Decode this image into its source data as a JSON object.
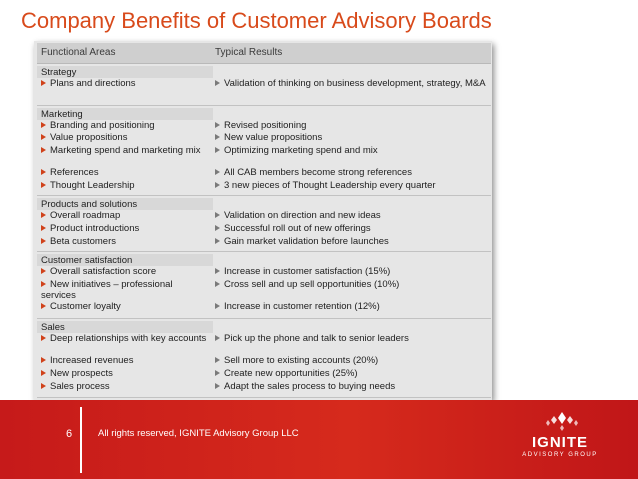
{
  "title": "Company Benefits of Customer Advisory Boards",
  "table": {
    "col1_header": "Functional Areas",
    "col2_header": "Typical Results",
    "sections": [
      {
        "name": "Strategy",
        "rows": [
          {
            "area": "Plans and directions",
            "result": "Validation of thinking on business development, strategy, M&A"
          }
        ]
      },
      {
        "name": "Marketing",
        "rows": [
          {
            "area": "Branding and positioning",
            "result": "Revised positioning"
          },
          {
            "area": "Value propositions",
            "result": "New value propositions"
          },
          {
            "area": "Marketing spend and marketing mix",
            "result": "Optimizing marketing spend and mix"
          },
          {
            "area": "References",
            "result": "All CAB members become strong references"
          },
          {
            "area": "Thought Leadership",
            "result": "3 new pieces of Thought Leadership every quarter"
          }
        ]
      },
      {
        "name": "Products and solutions",
        "rows": [
          {
            "area": "Overall roadmap",
            "result": "Validation on direction and new ideas"
          },
          {
            "area": "Product introductions",
            "result": "Successful roll out of new offerings"
          },
          {
            "area": "Beta customers",
            "result": "Gain market validation before launches"
          }
        ]
      },
      {
        "name": "Customer satisfaction",
        "rows": [
          {
            "area": "Overall satisfaction score",
            "result": "Increase in customer satisfaction (15%)"
          },
          {
            "area": "New initiatives – professional services",
            "result": "Cross sell and up sell opportunities (10%)"
          },
          {
            "area": "Customer loyalty",
            "result": "Increase in customer retention (12%)"
          }
        ]
      },
      {
        "name": "Sales",
        "rows": [
          {
            "area": "Deep relationships with key accounts",
            "result": "Pick up the phone and talk to senior leaders"
          },
          {
            "area": "Increased revenues",
            "result": "Sell more to existing accounts (20%)"
          },
          {
            "area": "New prospects",
            "result": "Create new opportunities (25%)"
          },
          {
            "area": "Sales process",
            "result": "Adapt the sales process to buying needs"
          }
        ]
      }
    ]
  },
  "footer": {
    "page_number": "6",
    "copyright": "All rights reserved, IGNITE Advisory Group LLC",
    "logo_word": "IGNITE",
    "logo_sub": "ADVISORY GROUP"
  },
  "colors": {
    "title": "#d84a1b",
    "footer": "#d0201b",
    "bullet": "#d0421b"
  }
}
